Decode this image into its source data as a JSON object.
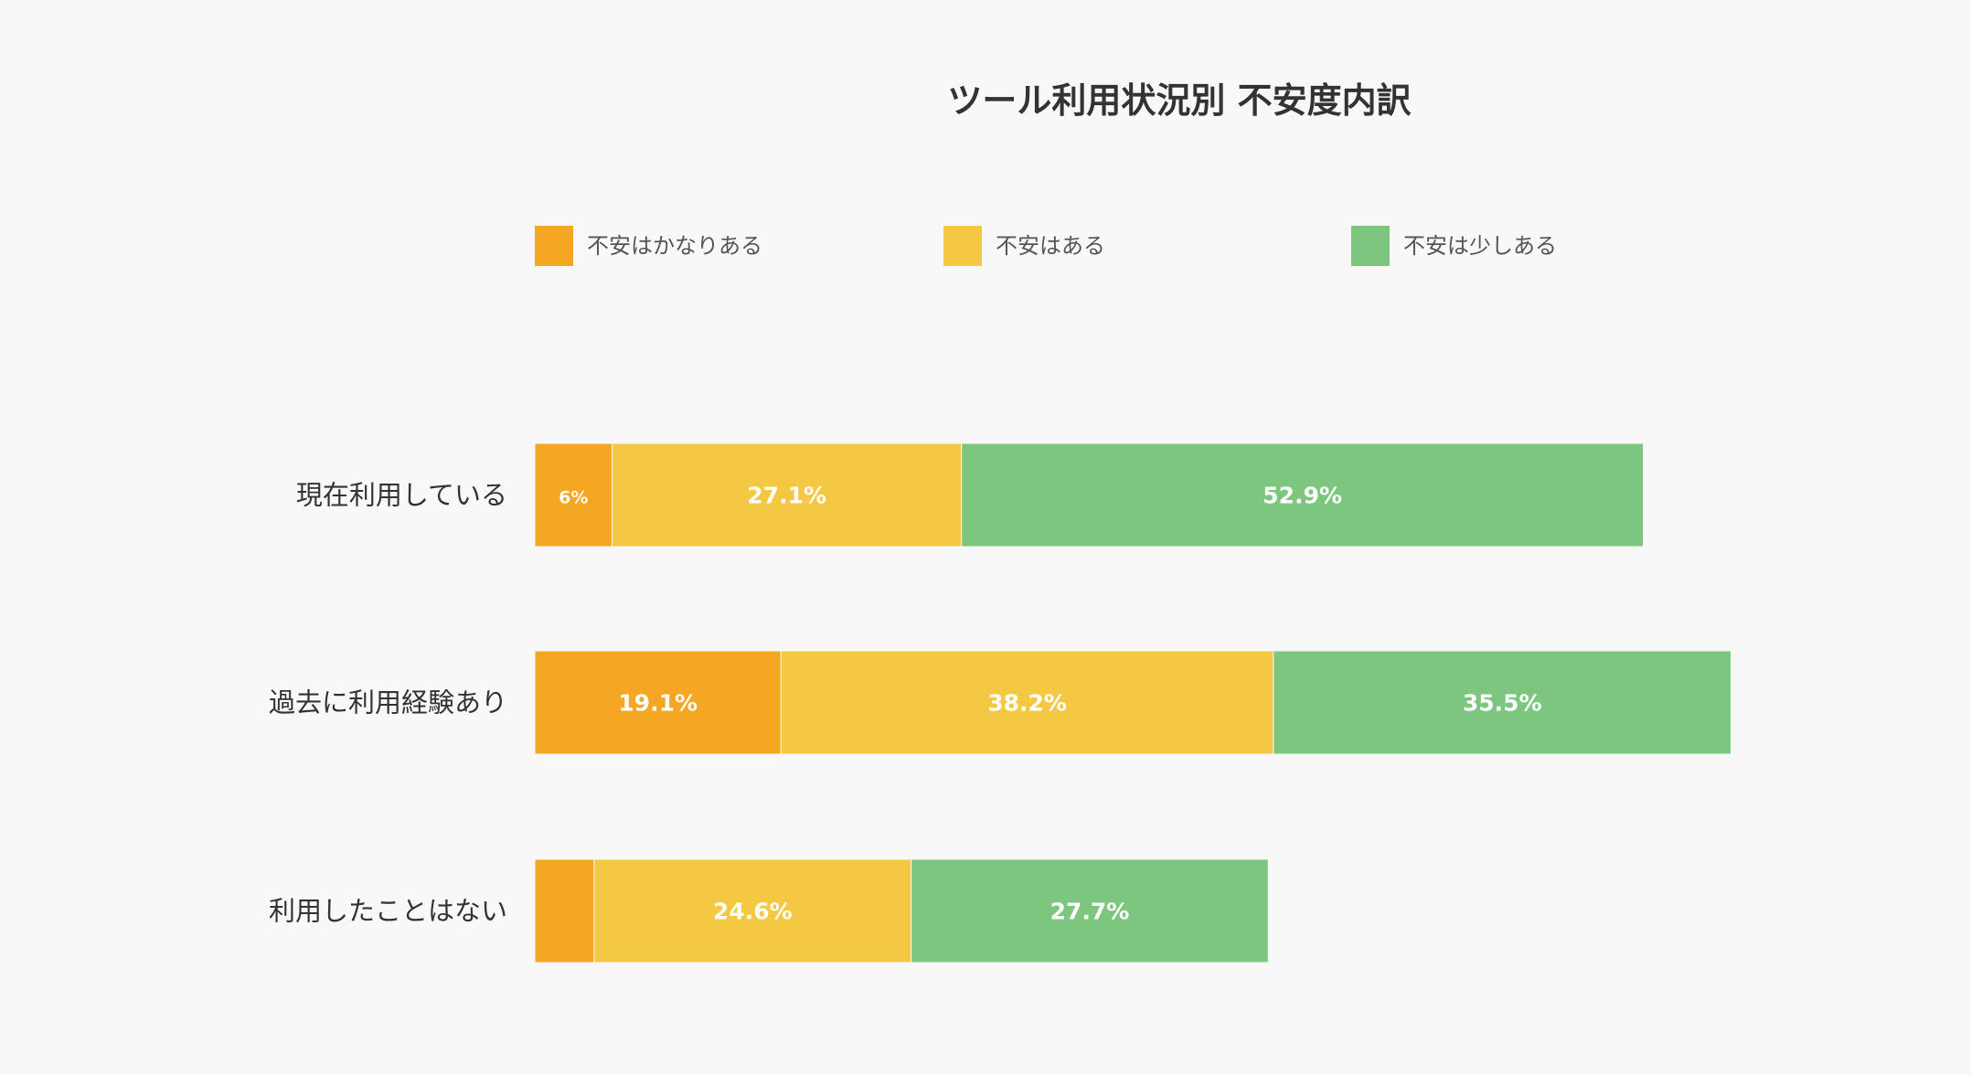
{
  "chart_data": {
    "type": "bar",
    "orientation": "horizontal",
    "stacked": true,
    "title": "ツール利用状況別 不安度内訳",
    "categories": [
      "現在利用している",
      "過去に利用経験あり",
      "利用したことはない"
    ],
    "series": [
      {
        "name": "不安はかなりある",
        "color": "#f5a623",
        "values": [
          6,
          19.1,
          4.6
        ],
        "labels": [
          "6%",
          "19.1%",
          ""
        ]
      },
      {
        "name": "不安はある",
        "color": "#f4c842",
        "values": [
          27.1,
          38.2,
          24.6
        ],
        "labels": [
          "27.1%",
          "38.2%",
          "24.6%"
        ]
      },
      {
        "name": "不安は少しある",
        "color": "#7dc67f",
        "values": [
          52.9,
          35.5,
          27.7
        ],
        "labels": [
          "52.9%",
          "35.5%",
          "27.7%"
        ]
      }
    ],
    "legend_position": "top",
    "grid": false,
    "axes_visible": false
  }
}
